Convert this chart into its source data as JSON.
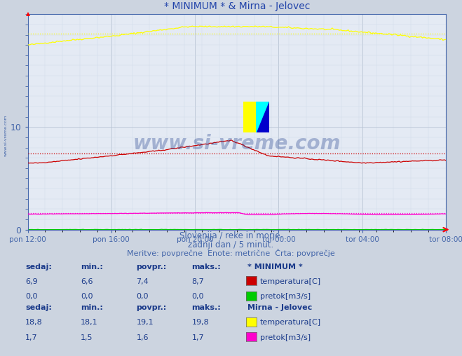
{
  "title": "* MINIMUM * & Mirna - Jelovec",
  "bg_color": "#ccd4e0",
  "plot_bg_color": "#e4eaf4",
  "grid_major_color": "#b8c4d4",
  "grid_minor_color": "#d0dae8",
  "axis_color": "#4466aa",
  "title_color": "#2244aa",
  "text_color": "#1a3a8a",
  "ylim": [
    0,
    21.0
  ],
  "ytick_labels": [
    "0",
    "10"
  ],
  "ytick_pos": [
    0,
    10
  ],
  "n_points": 288,
  "xtick_labels": [
    "pon 12:00",
    "pon 16:00",
    "pon 20:00",
    "tor 00:00",
    "tor 04:00",
    "tor 08:00"
  ],
  "min_temp_color": "#cc0000",
  "min_flow_color": "#00cc00",
  "mirna_temp_color": "#ffff00",
  "mirna_flow_color": "#ff00cc",
  "avg_min_temp": 7.4,
  "avg_mirna_temp": 19.1,
  "avg_min_flow": 0.0,
  "avg_mirna_flow": 1.6,
  "watermark": "www.si-vreme.com",
  "subtitle1": "Slovenija / reke in morje.",
  "subtitle2": "zadnji dan / 5 minut.",
  "subtitle3": "Meritve: povprečne  Enote: metrične  Črta: povprečje",
  "section1_name": "* MINIMUM *",
  "section2_name": "Mirna - Jelovec",
  "col_headers": [
    "sedaj:",
    "min.:",
    "povpr.:",
    "maks.:"
  ],
  "row1_vals": [
    "6,9",
    "6,6",
    "7,4",
    "8,7"
  ],
  "row1_label": "temperatura[C]",
  "row2_vals": [
    "0,0",
    "0,0",
    "0,0",
    "0,0"
  ],
  "row2_label": "pretok[m3/s]",
  "row3_vals": [
    "18,8",
    "18,1",
    "19,1",
    "19,8"
  ],
  "row3_label": "temperatura[C]",
  "row4_vals": [
    "1,7",
    "1,5",
    "1,6",
    "1,7"
  ],
  "row4_label": "pretok[m3/s]",
  "icon_colors": [
    "#ffff00",
    "#00ffff",
    "#0000cc"
  ]
}
